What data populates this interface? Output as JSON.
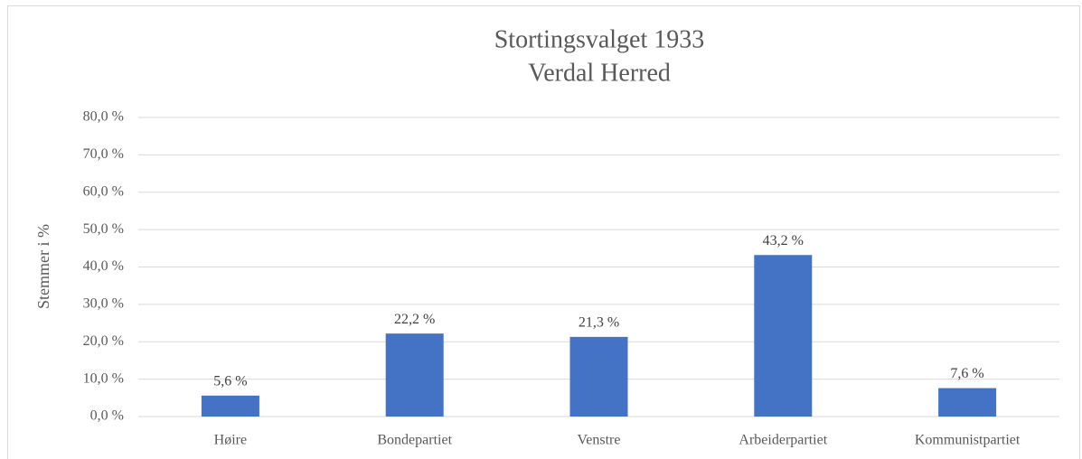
{
  "chart_data": {
    "type": "bar",
    "title": "Stortingsvalget 1933",
    "subtitle": "Verdal Herred",
    "y_label": "Stemmer i %",
    "categories": [
      "Høire",
      "Bondepartiet",
      "Venstre",
      "Arbeiderpartiet",
      "Kommunistpartiet"
    ],
    "values": [
      5.6,
      22.2,
      21.3,
      43.2,
      7.6
    ],
    "value_labels": [
      "5,6 %",
      "22,2 %",
      "21,3 %",
      "43,2 %",
      "7,6 %"
    ],
    "color": "#4472c4",
    "ylim": [
      0,
      80
    ],
    "yticks": [
      {
        "value": 0,
        "label": "0,0 %"
      },
      {
        "value": 10,
        "label": "10,0 %"
      },
      {
        "value": 20,
        "label": "20,0 %"
      },
      {
        "value": 30,
        "label": "30,0 %"
      },
      {
        "value": 40,
        "label": "40,0 %"
      },
      {
        "value": 50,
        "label": "50,0 %"
      },
      {
        "value": 60,
        "label": "60,0 %"
      },
      {
        "value": 70,
        "label": "70,0 %"
      },
      {
        "value": 80,
        "label": "80,0 %"
      }
    ],
    "grid": true
  }
}
